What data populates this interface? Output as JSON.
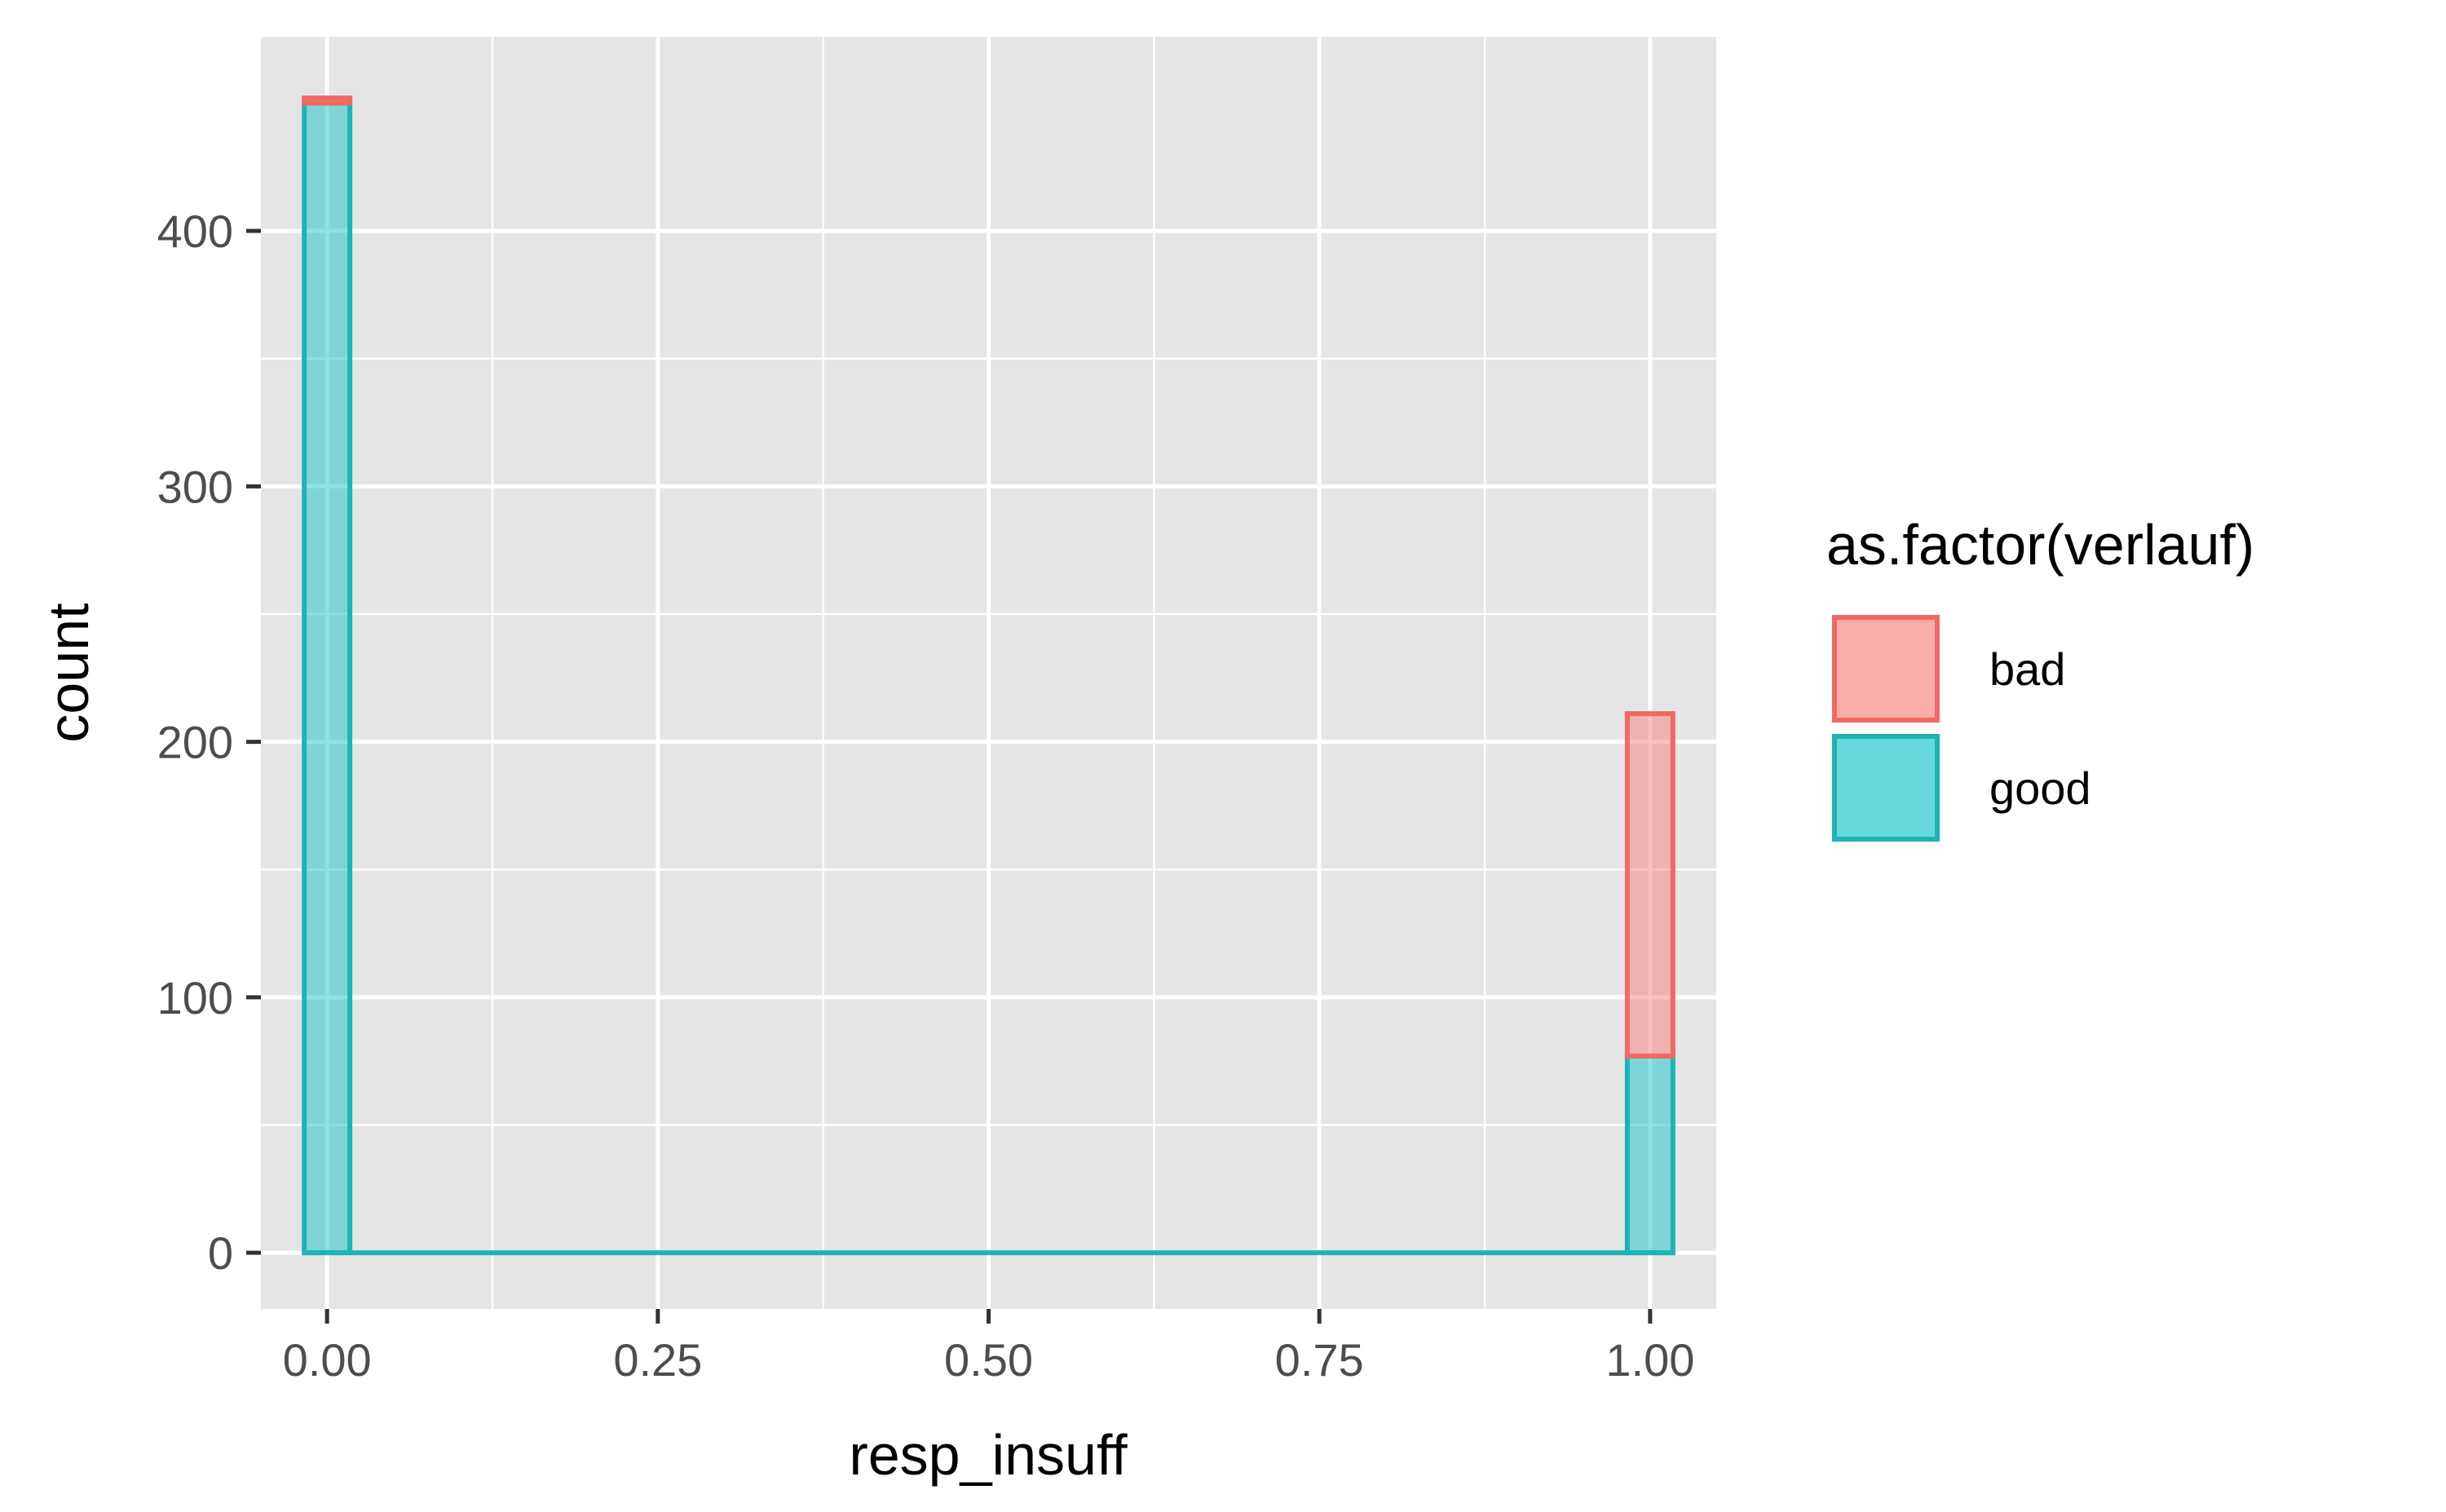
{
  "chart_data": {
    "type": "bar",
    "subtype": "stacked-histogram",
    "xlabel": "resp_insuff",
    "ylabel": "count",
    "xlim": [
      -0.05,
      1.05
    ],
    "ylim": [
      -22,
      476
    ],
    "xticks": [
      0.0,
      0.25,
      0.5,
      0.75,
      1.0
    ],
    "xtick_labels": [
      "0.00",
      "0.25",
      "0.50",
      "0.75",
      "1.00"
    ],
    "yticks": [
      0,
      100,
      200,
      300,
      400
    ],
    "ytick_labels": [
      "0",
      "100",
      "200",
      "300",
      "400"
    ],
    "bin_width": 0.0345,
    "grid": true,
    "legend": {
      "title": "as.factor(verlauf)",
      "position": "right"
    },
    "series": [
      {
        "name": "good",
        "fill": "#00BFC4",
        "stroke": "#1FB3B3",
        "bins": [
          {
            "x": 0.0,
            "count": 450
          },
          {
            "x": 1.0,
            "count": 77
          }
        ]
      },
      {
        "name": "bad",
        "fill": "#F8766D",
        "stroke": "#EE6A62",
        "bins": [
          {
            "x": 0.0,
            "count": 2
          },
          {
            "x": 1.0,
            "count": 134
          }
        ]
      }
    ]
  },
  "colors": {
    "panel": "#E5E5E5",
    "grid": "#FFFFFF",
    "tick": "#333333",
    "tick_text": "#4D4D4D"
  }
}
